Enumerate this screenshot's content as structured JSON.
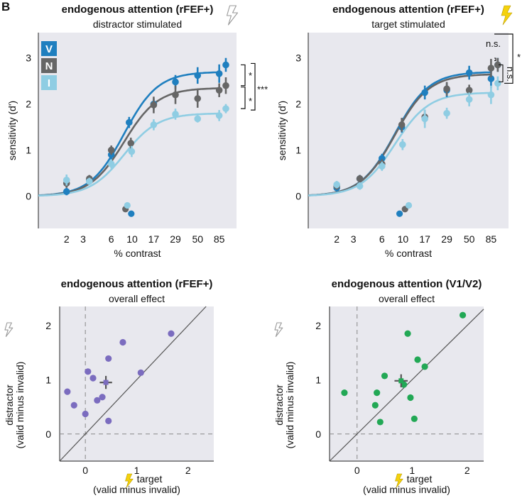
{
  "panel_letter": "B",
  "colors": {
    "valid": "#1f7fbf",
    "neutral": "#666666",
    "invalid": "#8fcde3",
    "purple": "#7b6cbf",
    "green": "#22a855",
    "bg": "#e8e8ee",
    "bolt_fill": "#f5d20d",
    "bolt_outline": "#999999"
  },
  "icons": {
    "stim_on": "lightning-bolt-yellow",
    "stim_off": "lightning-bolt-outline"
  },
  "chart_data": [
    {
      "type": "line",
      "title": "endogenous attention (rFEF+)",
      "subtitle": "distractor stimulated",
      "stimulation_icon": "outline",
      "xlabel": "% contrast",
      "ylabel": "sensitivity (d')",
      "x_scale": "log",
      "xlim": [
        1,
        130
      ],
      "ylim": [
        -0.7,
        3.55
      ],
      "xticks": [
        2,
        3,
        6,
        10,
        17,
        29,
        50,
        85
      ],
      "xtick_labels": [
        "2",
        "3",
        "6",
        "10",
        "17",
        "29",
        "50",
        "85"
      ],
      "yticks": [
        0,
        1,
        2,
        3
      ],
      "ytick_labels": [
        "0",
        "1",
        "2",
        "3"
      ],
      "legend": [
        "V",
        "N",
        "I"
      ],
      "series": [
        {
          "name": "V",
          "key": "valid",
          "x": [
            2,
            3.5,
            6,
            9.3,
            17,
            29,
            50,
            85
          ],
          "y": [
            0.1,
            0.35,
            0.9,
            1.6,
            2.0,
            2.48,
            2.62,
            2.66
          ],
          "err": [
            0.08,
            0.08,
            0.1,
            0.12,
            0.12,
            0.15,
            0.18,
            0.2
          ],
          "fit": {
            "rmax": 2.7,
            "c50": 8.2,
            "n": 2.4
          },
          "offset_point": {
            "x": 100,
            "y": 2.85,
            "err": 0.15
          },
          "floor_point": {
            "x": 9.8,
            "y": -0.38
          }
        },
        {
          "name": "N",
          "key": "neutral",
          "x": [
            2,
            3.5,
            6,
            9.7,
            17,
            29,
            50,
            85
          ],
          "y": [
            0.28,
            0.38,
            1.0,
            1.15,
            1.98,
            2.2,
            2.12,
            2.3
          ],
          "err": [
            0.1,
            0.08,
            0.1,
            0.12,
            0.18,
            0.2,
            0.2,
            0.15
          ],
          "fit": {
            "rmax": 2.35,
            "c50": 8.2,
            "n": 2.4
          },
          "offset_point": {
            "x": 100,
            "y": 2.4,
            "err": 0.18
          },
          "floor_point": {
            "x": 8.5,
            "y": -0.28
          }
        },
        {
          "name": "I",
          "key": "invalid",
          "x": [
            2,
            3.5,
            6,
            9.9,
            17,
            29,
            50,
            85
          ],
          "y": [
            0.35,
            0.32,
            0.7,
            0.97,
            1.55,
            1.78,
            1.68,
            1.75
          ],
          "err": [
            0.12,
            0.08,
            0.1,
            0.12,
            0.12,
            0.12,
            0.08,
            0.12
          ],
          "fit": {
            "rmax": 1.8,
            "c50": 8.2,
            "n": 2.4
          },
          "offset_point": {
            "x": 100,
            "y": 1.9,
            "err": 0.1
          },
          "floor_point": {
            "x": 8.9,
            "y": -0.2
          }
        }
      ],
      "significance": [
        {
          "between": [
            "V",
            "N"
          ],
          "label": "*"
        },
        {
          "between": [
            "N",
            "I"
          ],
          "label": "*"
        },
        {
          "between": [
            "V",
            "I"
          ],
          "label": "***"
        }
      ]
    },
    {
      "type": "line",
      "title": "endogenous attention (rFEF+)",
      "subtitle": "target stimulated",
      "stimulation_icon": "filled",
      "xlabel": "% contrast",
      "ylabel": "sensitivity (d')",
      "x_scale": "log",
      "xlim": [
        1,
        130
      ],
      "ylim": [
        -0.7,
        3.55
      ],
      "xticks": [
        2,
        3,
        6,
        10,
        17,
        29,
        50,
        85
      ],
      "xtick_labels": [
        "2",
        "3",
        "6",
        "10",
        "17",
        "29",
        "50",
        "85"
      ],
      "yticks": [
        0,
        1,
        2,
        3
      ],
      "ytick_labels": [
        "0",
        "1",
        "2",
        "3"
      ],
      "series": [
        {
          "name": "V",
          "key": "valid",
          "x": [
            2,
            3.5,
            6,
            9.7,
            17,
            29,
            50,
            85
          ],
          "y": [
            0.18,
            0.38,
            0.82,
            1.5,
            2.25,
            2.3,
            2.68,
            2.55
          ],
          "err": [
            0.08,
            0.08,
            0.1,
            0.12,
            0.15,
            0.15,
            0.15,
            0.2
          ],
          "fit": {
            "rmax": 2.7,
            "c50": 8.2,
            "n": 2.4
          },
          "offset_point": {
            "x": 100,
            "y": 2.85,
            "err": 0.15
          },
          "floor_point": {
            "x": 9.2,
            "y": -0.38
          }
        },
        {
          "name": "N",
          "key": "neutral",
          "x": [
            2,
            3.5,
            6,
            9.7,
            17,
            29,
            50,
            85
          ],
          "y": [
            0.22,
            0.38,
            0.7,
            1.55,
            1.72,
            2.33,
            2.3,
            2.78
          ],
          "err": [
            0.08,
            0.08,
            0.1,
            0.15,
            0.15,
            0.15,
            0.12,
            0.2
          ],
          "fit": {
            "rmax": 2.65,
            "c50": 8.2,
            "n": 2.4
          },
          "offset_point": {
            "x": 100,
            "y": 2.85,
            "err": 0.15
          },
          "floor_point": {
            "x": 10.5,
            "y": -0.28
          }
        },
        {
          "name": "I",
          "key": "invalid",
          "x": [
            2,
            3.5,
            6,
            9.9,
            17,
            29,
            50,
            85
          ],
          "y": [
            0.25,
            0.22,
            0.65,
            1.12,
            1.68,
            1.8,
            2.1,
            2.2
          ],
          "err": [
            0.08,
            0.08,
            0.1,
            0.12,
            0.2,
            0.12,
            0.15,
            0.2
          ],
          "fit": {
            "rmax": 2.25,
            "c50": 8.2,
            "n": 2.4
          },
          "offset_point": {
            "x": 100,
            "y": 2.45,
            "err": 0.15
          },
          "floor_point": {
            "x": 11.5,
            "y": -0.2
          }
        }
      ],
      "significance": [
        {
          "between": [
            "V",
            "N"
          ],
          "label": "n.s."
        },
        {
          "between": [
            "N",
            "I"
          ],
          "label": "n.s."
        },
        {
          "between": [
            "V",
            "I"
          ],
          "label": "*"
        }
      ]
    },
    {
      "type": "scatter",
      "title": "endogenous attention (rFEF+)",
      "subtitle": "overall effect",
      "color_key": "purple",
      "xlabel": "target",
      "xlabel2": "(valid minus invalid)",
      "ylabel": "distractor",
      "ylabel2": "(valid minus invalid)",
      "xlim": [
        -0.5,
        2.5
      ],
      "ylim": [
        -0.5,
        2.35
      ],
      "xticks": [
        0,
        1,
        2
      ],
      "xtick_labels": [
        "0",
        "1",
        "2"
      ],
      "yticks": [
        0,
        1,
        2
      ],
      "ytick_labels": [
        "0",
        "1",
        "2"
      ],
      "points": [
        [
          -0.35,
          0.78
        ],
        [
          -0.22,
          0.53
        ],
        [
          0.0,
          0.37
        ],
        [
          0.05,
          1.15
        ],
        [
          0.15,
          1.03
        ],
        [
          0.23,
          0.62
        ],
        [
          0.33,
          0.68
        ],
        [
          0.45,
          0.24
        ],
        [
          0.45,
          1.39
        ],
        [
          0.73,
          1.69
        ],
        [
          1.08,
          1.13
        ],
        [
          1.67,
          1.85
        ]
      ],
      "mean": {
        "x": 0.4,
        "y": 0.95,
        "xerr": 0.12,
        "yerr": 0.12
      }
    },
    {
      "type": "scatter",
      "title": "endogenous attention (V1/V2)",
      "subtitle": "overall effect",
      "color_key": "green",
      "xlabel": "target",
      "xlabel2": "(valid minus invalid)",
      "ylabel": "distractor",
      "ylabel2": "(valid minus invalid)",
      "xlim": [
        -0.5,
        2.3
      ],
      "ylim": [
        -0.5,
        2.35
      ],
      "xticks": [
        0,
        1,
        2
      ],
      "xtick_labels": [
        "0",
        "1",
        "2"
      ],
      "yticks": [
        0,
        1,
        2
      ],
      "ytick_labels": [
        "0",
        "1",
        "2"
      ],
      "points": [
        [
          -0.23,
          0.76
        ],
        [
          0.33,
          0.53
        ],
        [
          0.36,
          0.76
        ],
        [
          0.42,
          0.22
        ],
        [
          0.5,
          1.07
        ],
        [
          0.85,
          0.91
        ],
        [
          0.92,
          1.85
        ],
        [
          0.97,
          0.67
        ],
        [
          1.04,
          0.28
        ],
        [
          1.1,
          1.37
        ],
        [
          1.23,
          1.24
        ],
        [
          1.92,
          2.19
        ]
      ],
      "mean": {
        "x": 0.8,
        "y": 0.98,
        "xerr": 0.12,
        "yerr": 0.12
      }
    }
  ]
}
